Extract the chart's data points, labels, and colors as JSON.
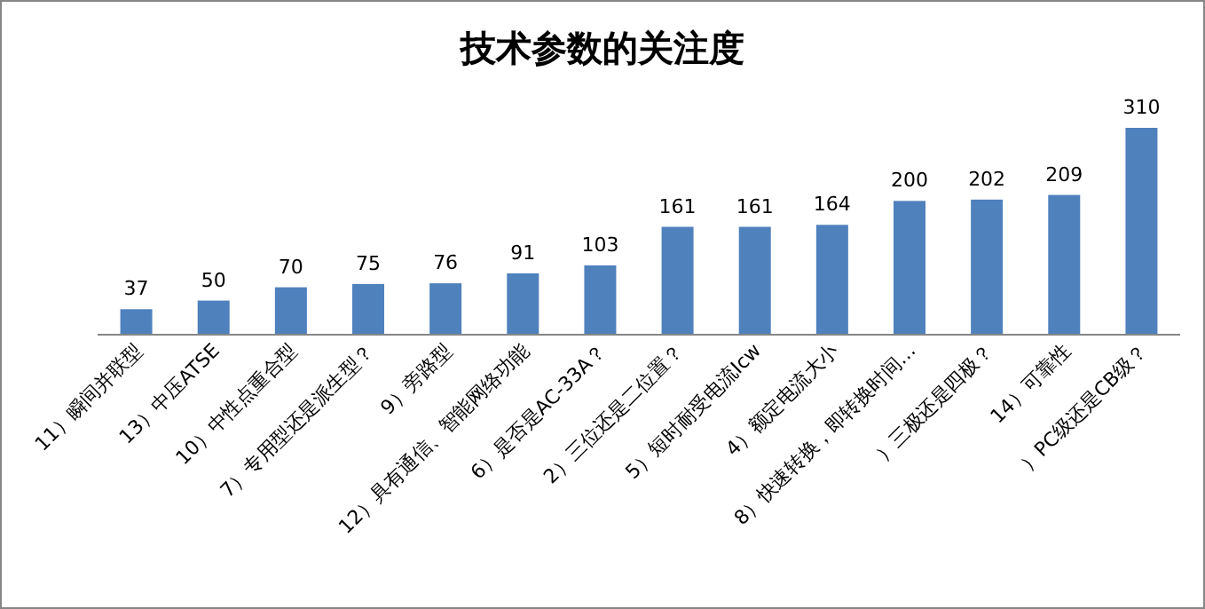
{
  "chart_data": {
    "type": "bar",
    "title": "技术参数的关注度",
    "categories": [
      "11）瞬间并联型",
      "13）中压ATSE",
      "10）中性点重合型",
      "7）专用型还是派生型？",
      "9）旁路型",
      "12）具有通信、智能网络功能",
      "6）是否是AC-33A？",
      "2）三位还是二位置？",
      "5）短时耐受电流Icw",
      "4）额定电流大小",
      "8）快速转换，即转换时间…",
      "）三极还是四极？",
      "14）可靠性",
      "）PC级还是CB级？"
    ],
    "values": [
      37,
      50,
      70,
      75,
      76,
      91,
      103,
      161,
      161,
      164,
      200,
      202,
      209,
      310
    ],
    "color": "#4f81bd",
    "data_labels": true
  }
}
